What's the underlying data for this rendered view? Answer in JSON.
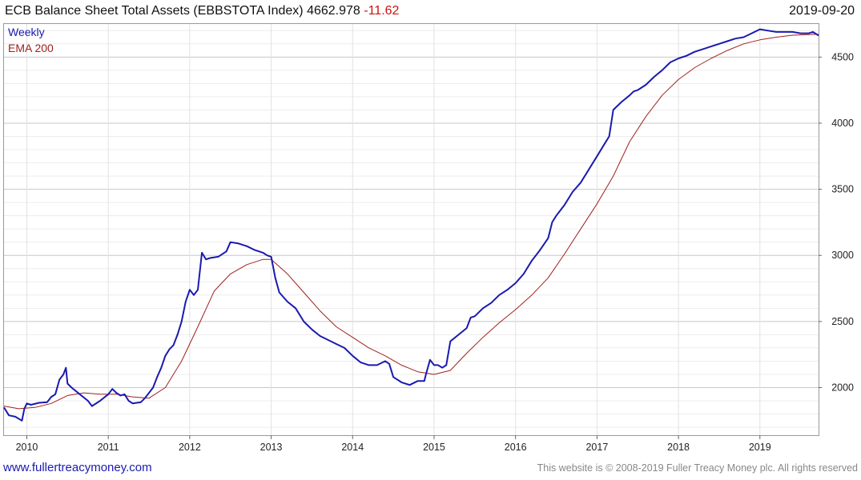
{
  "header": {
    "title_main": "ECB Balance Sheet Total Assets (EBBSTOTA Index) 4662.978",
    "title_change": "-11.62",
    "date": "2019-09-20"
  },
  "legend": {
    "series1": "Weekly",
    "series2": "EMA 200"
  },
  "footer": {
    "link": "www.fullertreacymoney.com",
    "copyright": "This website is © 2008-2019 Fuller Treacy Money plc. All rights reserved"
  },
  "colors": {
    "weekly": "#1a1ab0",
    "ema": "#a02020",
    "change_negative": "#d01010"
  },
  "chart_data": {
    "type": "line",
    "grid": true,
    "y_axis_side": "right",
    "ylim": [
      1640,
      4750
    ],
    "xlim": [
      2009.72,
      2019.72
    ],
    "yticks": [
      2000,
      2500,
      3000,
      3500,
      4000,
      4500
    ],
    "xticks": [
      "2010",
      "2011",
      "2012",
      "2013",
      "2014",
      "2015",
      "2016",
      "2017",
      "2018",
      "2019"
    ],
    "series": [
      {
        "name": "Weekly",
        "points": [
          [
            2009.72,
            1850
          ],
          [
            2009.78,
            1790
          ],
          [
            2009.86,
            1780
          ],
          [
            2009.94,
            1750
          ],
          [
            2009.97,
            1840
          ],
          [
            2010.0,
            1880
          ],
          [
            2010.05,
            1870
          ],
          [
            2010.15,
            1885
          ],
          [
            2010.25,
            1890
          ],
          [
            2010.3,
            1930
          ],
          [
            2010.35,
            1950
          ],
          [
            2010.4,
            2060
          ],
          [
            2010.45,
            2100
          ],
          [
            2010.48,
            2150
          ],
          [
            2010.5,
            2030
          ],
          [
            2010.55,
            2000
          ],
          [
            2010.65,
            1950
          ],
          [
            2010.75,
            1900
          ],
          [
            2010.8,
            1860
          ],
          [
            2010.9,
            1900
          ],
          [
            2011.0,
            1950
          ],
          [
            2011.05,
            1990
          ],
          [
            2011.1,
            1960
          ],
          [
            2011.15,
            1940
          ],
          [
            2011.2,
            1950
          ],
          [
            2011.25,
            1900
          ],
          [
            2011.3,
            1880
          ],
          [
            2011.4,
            1890
          ],
          [
            2011.45,
            1920
          ],
          [
            2011.5,
            1960
          ],
          [
            2011.55,
            2000
          ],
          [
            2011.6,
            2080
          ],
          [
            2011.65,
            2150
          ],
          [
            2011.7,
            2240
          ],
          [
            2011.75,
            2290
          ],
          [
            2011.8,
            2320
          ],
          [
            2011.85,
            2400
          ],
          [
            2011.9,
            2500
          ],
          [
            2011.95,
            2650
          ],
          [
            2012.0,
            2740
          ],
          [
            2012.05,
            2700
          ],
          [
            2012.1,
            2740
          ],
          [
            2012.15,
            3020
          ],
          [
            2012.2,
            2970
          ],
          [
            2012.25,
            2980
          ],
          [
            2012.35,
            2990
          ],
          [
            2012.45,
            3030
          ],
          [
            2012.5,
            3100
          ],
          [
            2012.6,
            3090
          ],
          [
            2012.7,
            3070
          ],
          [
            2012.8,
            3040
          ],
          [
            2012.9,
            3020
          ],
          [
            2012.95,
            3000
          ],
          [
            2013.0,
            2990
          ],
          [
            2013.05,
            2830
          ],
          [
            2013.1,
            2720
          ],
          [
            2013.2,
            2650
          ],
          [
            2013.3,
            2600
          ],
          [
            2013.4,
            2500
          ],
          [
            2013.5,
            2440
          ],
          [
            2013.6,
            2390
          ],
          [
            2013.7,
            2360
          ],
          [
            2013.8,
            2330
          ],
          [
            2013.9,
            2300
          ],
          [
            2014.0,
            2240
          ],
          [
            2014.1,
            2190
          ],
          [
            2014.2,
            2170
          ],
          [
            2014.3,
            2170
          ],
          [
            2014.4,
            2200
          ],
          [
            2014.45,
            2180
          ],
          [
            2014.5,
            2080
          ],
          [
            2014.6,
            2040
          ],
          [
            2014.7,
            2020
          ],
          [
            2014.8,
            2050
          ],
          [
            2014.88,
            2050
          ],
          [
            2014.9,
            2100
          ],
          [
            2014.95,
            2210
          ],
          [
            2015.0,
            2170
          ],
          [
            2015.05,
            2170
          ],
          [
            2015.1,
            2150
          ],
          [
            2015.15,
            2170
          ],
          [
            2015.2,
            2350
          ],
          [
            2015.3,
            2400
          ],
          [
            2015.4,
            2450
          ],
          [
            2015.45,
            2530
          ],
          [
            2015.5,
            2540
          ],
          [
            2015.6,
            2600
          ],
          [
            2015.7,
            2640
          ],
          [
            2015.8,
            2700
          ],
          [
            2015.9,
            2740
          ],
          [
            2016.0,
            2790
          ],
          [
            2016.1,
            2860
          ],
          [
            2016.2,
            2960
          ],
          [
            2016.3,
            3040
          ],
          [
            2016.4,
            3130
          ],
          [
            2016.45,
            3250
          ],
          [
            2016.5,
            3300
          ],
          [
            2016.6,
            3380
          ],
          [
            2016.7,
            3480
          ],
          [
            2016.8,
            3550
          ],
          [
            2016.9,
            3650
          ],
          [
            2017.0,
            3750
          ],
          [
            2017.1,
            3850
          ],
          [
            2017.15,
            3900
          ],
          [
            2017.2,
            4100
          ],
          [
            2017.3,
            4160
          ],
          [
            2017.4,
            4210
          ],
          [
            2017.45,
            4240
          ],
          [
            2017.5,
            4250
          ],
          [
            2017.6,
            4290
          ],
          [
            2017.7,
            4350
          ],
          [
            2017.8,
            4400
          ],
          [
            2017.9,
            4460
          ],
          [
            2018.0,
            4490
          ],
          [
            2018.1,
            4510
          ],
          [
            2018.2,
            4540
          ],
          [
            2018.3,
            4560
          ],
          [
            2018.4,
            4580
          ],
          [
            2018.5,
            4600
          ],
          [
            2018.6,
            4620
          ],
          [
            2018.7,
            4640
          ],
          [
            2018.8,
            4650
          ],
          [
            2018.9,
            4680
          ],
          [
            2019.0,
            4710
          ],
          [
            2019.1,
            4700
          ],
          [
            2019.2,
            4690
          ],
          [
            2019.3,
            4690
          ],
          [
            2019.4,
            4690
          ],
          [
            2019.5,
            4680
          ],
          [
            2019.6,
            4680
          ],
          [
            2019.65,
            4690
          ],
          [
            2019.72,
            4663
          ]
        ]
      },
      {
        "name": "EMA 200",
        "points": [
          [
            2009.72,
            1860
          ],
          [
            2009.9,
            1840
          ],
          [
            2010.1,
            1850
          ],
          [
            2010.3,
            1880
          ],
          [
            2010.5,
            1940
          ],
          [
            2010.7,
            1960
          ],
          [
            2010.9,
            1950
          ],
          [
            2011.1,
            1950
          ],
          [
            2011.3,
            1930
          ],
          [
            2011.5,
            1920
          ],
          [
            2011.7,
            2000
          ],
          [
            2011.9,
            2200
          ],
          [
            2012.1,
            2460
          ],
          [
            2012.3,
            2730
          ],
          [
            2012.5,
            2860
          ],
          [
            2012.7,
            2930
          ],
          [
            2012.9,
            2970
          ],
          [
            2013.0,
            2970
          ],
          [
            2013.2,
            2860
          ],
          [
            2013.4,
            2720
          ],
          [
            2013.6,
            2580
          ],
          [
            2013.8,
            2460
          ],
          [
            2014.0,
            2380
          ],
          [
            2014.2,
            2300
          ],
          [
            2014.4,
            2240
          ],
          [
            2014.6,
            2170
          ],
          [
            2014.8,
            2120
          ],
          [
            2015.0,
            2100
          ],
          [
            2015.2,
            2130
          ],
          [
            2015.4,
            2260
          ],
          [
            2015.6,
            2380
          ],
          [
            2015.8,
            2490
          ],
          [
            2016.0,
            2590
          ],
          [
            2016.2,
            2700
          ],
          [
            2016.4,
            2830
          ],
          [
            2016.6,
            3010
          ],
          [
            2016.8,
            3200
          ],
          [
            2017.0,
            3390
          ],
          [
            2017.2,
            3600
          ],
          [
            2017.4,
            3860
          ],
          [
            2017.6,
            4050
          ],
          [
            2017.8,
            4210
          ],
          [
            2018.0,
            4330
          ],
          [
            2018.2,
            4420
          ],
          [
            2018.4,
            4490
          ],
          [
            2018.6,
            4550
          ],
          [
            2018.8,
            4600
          ],
          [
            2019.0,
            4630
          ],
          [
            2019.2,
            4650
          ],
          [
            2019.4,
            4665
          ],
          [
            2019.6,
            4670
          ],
          [
            2019.72,
            4672
          ]
        ]
      }
    ]
  }
}
